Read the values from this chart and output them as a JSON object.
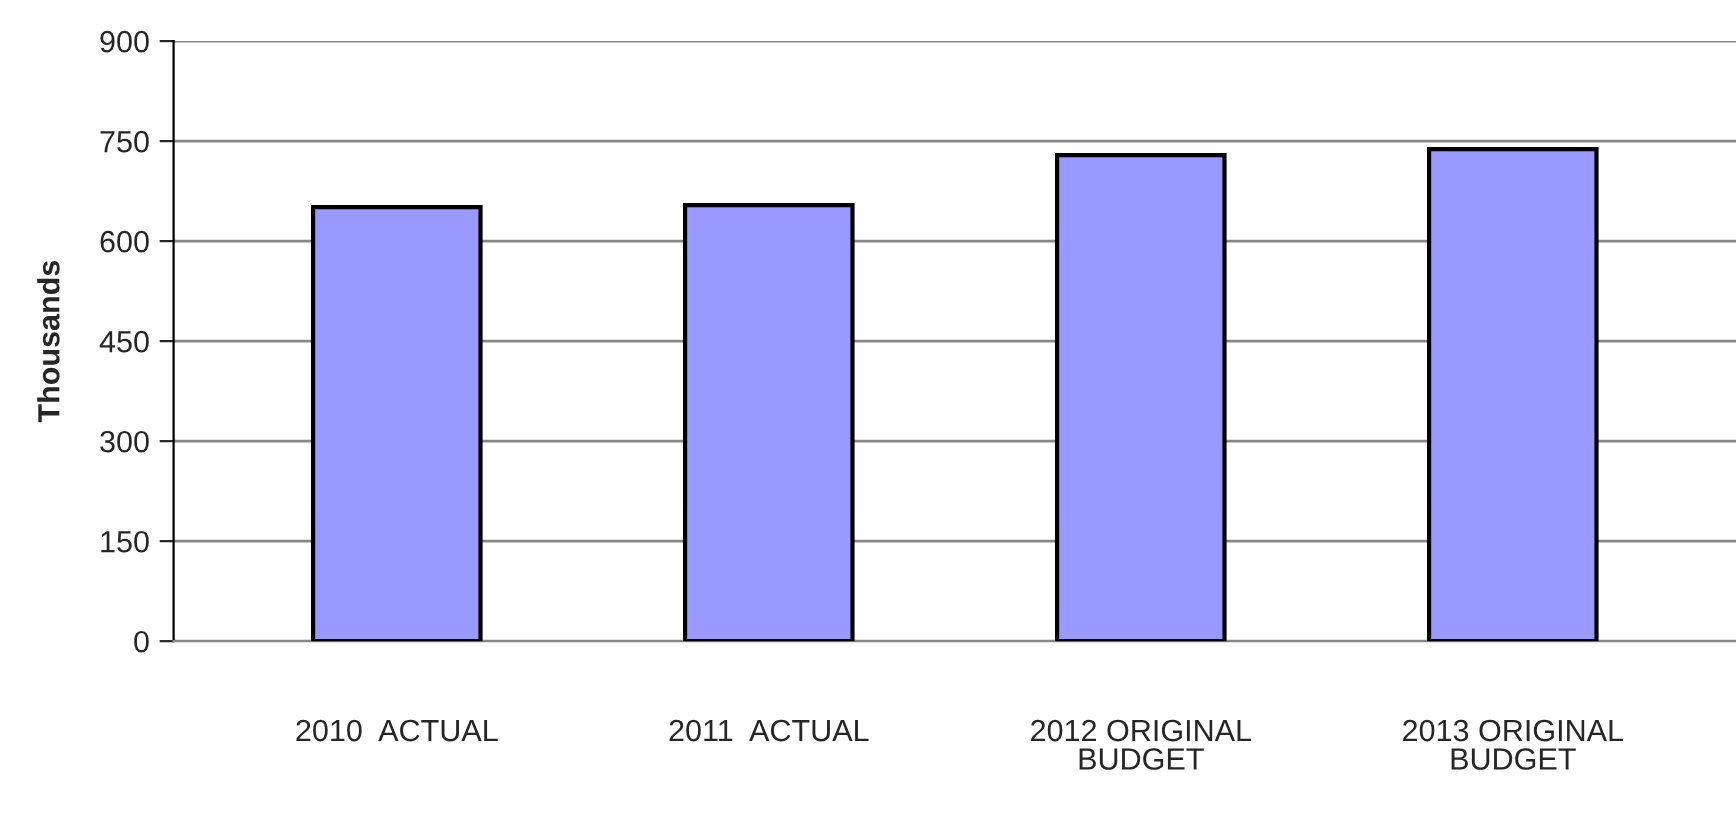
{
  "chart_data": {
    "type": "bar",
    "ylabel": "Thousands",
    "categories": [
      "2010  ACTUAL",
      "2011  ACTUAL",
      "2012 ORIGINAL\nBUDGET",
      "2013 ORIGINAL\nBUDGET"
    ],
    "values": [
      651,
      654,
      729,
      738
    ],
    "color": "#9999ff",
    "ylim": [
      0,
      900
    ],
    "yticks": [
      0,
      150,
      300,
      450,
      600,
      750,
      900
    ],
    "grid": "y"
  }
}
